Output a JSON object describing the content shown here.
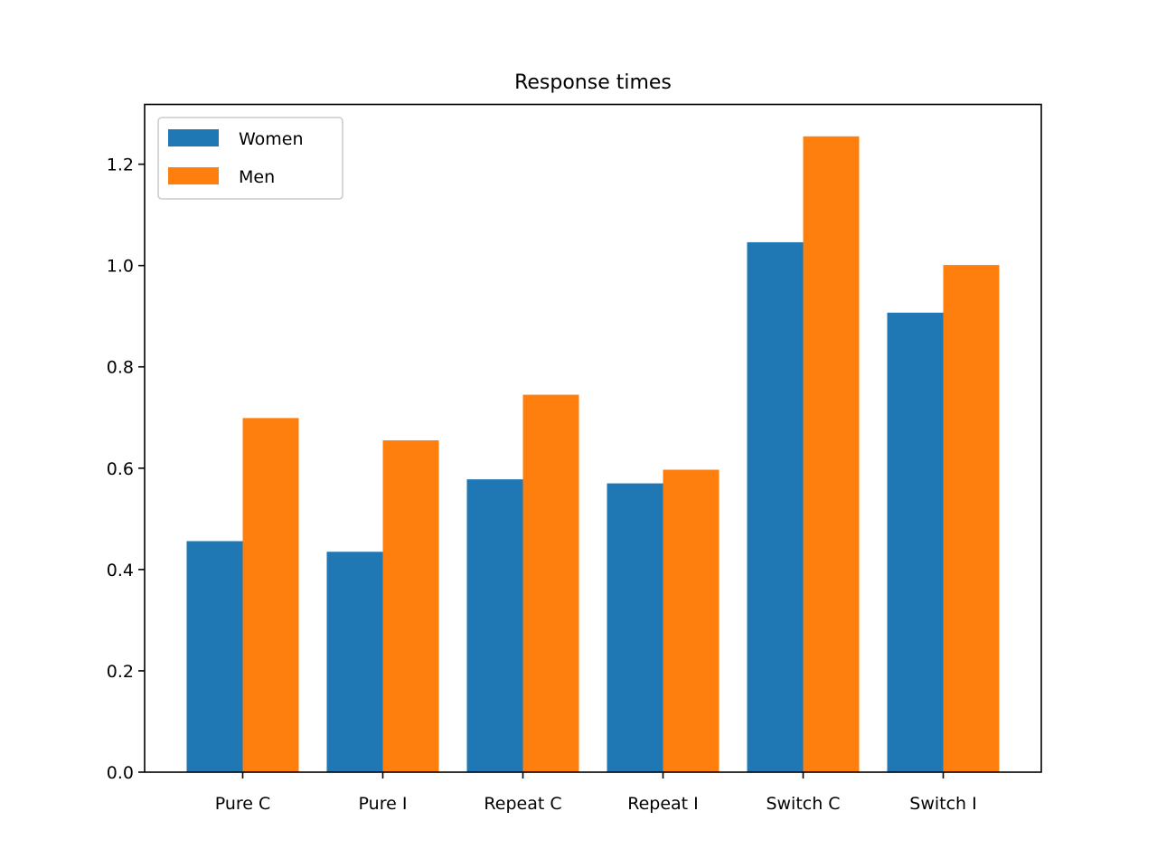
{
  "chart_data": {
    "type": "bar",
    "title": "Response times",
    "xlabel": "",
    "ylabel": "",
    "categories": [
      "Pure C",
      "Pure I",
      "Repeat C",
      "Repeat I",
      "Switch C",
      "Switch I"
    ],
    "series": [
      {
        "name": "Women",
        "color": "#1f77b4",
        "values": [
          0.456,
          0.435,
          0.578,
          0.57,
          1.046,
          0.907
        ]
      },
      {
        "name": "Men",
        "color": "#ff7f0e",
        "values": [
          0.699,
          0.655,
          0.745,
          0.597,
          1.255,
          1.001
        ]
      }
    ],
    "ylim": [
      0,
      1.318
    ],
    "yticks": [
      "0.0",
      "0.2",
      "0.4",
      "0.6",
      "0.8",
      "1.0",
      "1.2"
    ],
    "grid": false,
    "legend": "top-left"
  }
}
